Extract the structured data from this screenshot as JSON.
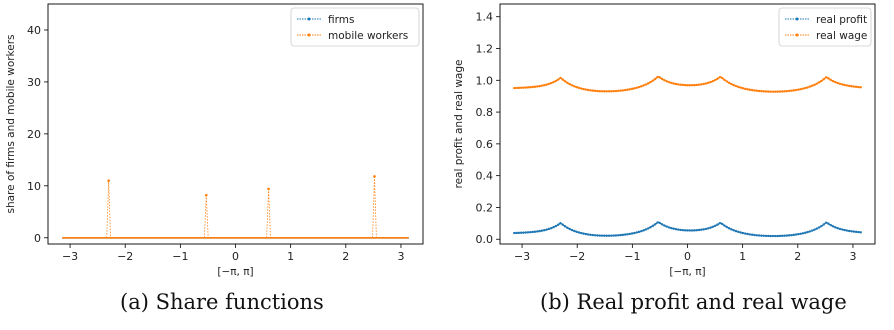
{
  "chart_data": [
    {
      "type": "line",
      "caption": "(a) Share functions",
      "xlabel": "[−π, π]",
      "ylabel": "share of firms and mobile workers",
      "xlim": [
        -3.4,
        3.4
      ],
      "ylim": [
        -1.2,
        45
      ],
      "xticks": [
        -3,
        -2,
        -1,
        0,
        1,
        2,
        3
      ],
      "xtick_labels": [
        "−3",
        "−2",
        "−1",
        "0",
        "1",
        "2",
        "3"
      ],
      "yticks": [
        0,
        10,
        20,
        30,
        40
      ],
      "ytick_labels": [
        "0",
        "10",
        "20",
        "30",
        "40"
      ],
      "grid": false,
      "legend_position": "top-right",
      "spikes": [
        {
          "x": -2.3,
          "value": 11.0
        },
        {
          "x": -0.53,
          "value": 8.2
        },
        {
          "x": 0.6,
          "value": 9.4
        },
        {
          "x": 2.52,
          "value": 11.8
        }
      ],
      "series": [
        {
          "name": "firms",
          "color": "#1f77b4",
          "baseline": 0
        },
        {
          "name": "mobile workers",
          "color": "#ff7f0e",
          "baseline": 0
        }
      ]
    },
    {
      "type": "line",
      "caption": "(b) Real profit and real wage",
      "xlabel": "[−π, π]",
      "ylabel": "real profit and real wage",
      "xlim": [
        -3.4,
        3.4
      ],
      "ylim": [
        -0.03,
        1.48
      ],
      "xticks": [
        -3,
        -2,
        -1,
        0,
        1,
        2,
        3
      ],
      "xtick_labels": [
        "−3",
        "−2",
        "−1",
        "0",
        "1",
        "2",
        "3"
      ],
      "yticks": [
        0.0,
        0.2,
        0.4,
        0.6,
        0.8,
        1.0,
        1.2,
        1.4
      ],
      "ytick_labels": [
        "0.0",
        "0.2",
        "0.4",
        "0.6",
        "0.8",
        "1.0",
        "1.2",
        "1.4"
      ],
      "grid": false,
      "legend_position": "top-right",
      "peaks": [
        -2.3,
        -0.53,
        0.6,
        2.52
      ],
      "series": [
        {
          "name": "real profit",
          "color": "#1f77b4",
          "base": 0.025,
          "peak_values": [
            0.12,
            0.12,
            0.115,
            0.12
          ]
        },
        {
          "name": "real  wage",
          "color": "#ff7f0e",
          "base": 0.935,
          "peak_values": [
            1.035,
            1.035,
            1.035,
            1.035
          ]
        }
      ]
    }
  ],
  "captions": {
    "a": "(a) Share functions",
    "b": "(b) Real profit and real wage"
  }
}
